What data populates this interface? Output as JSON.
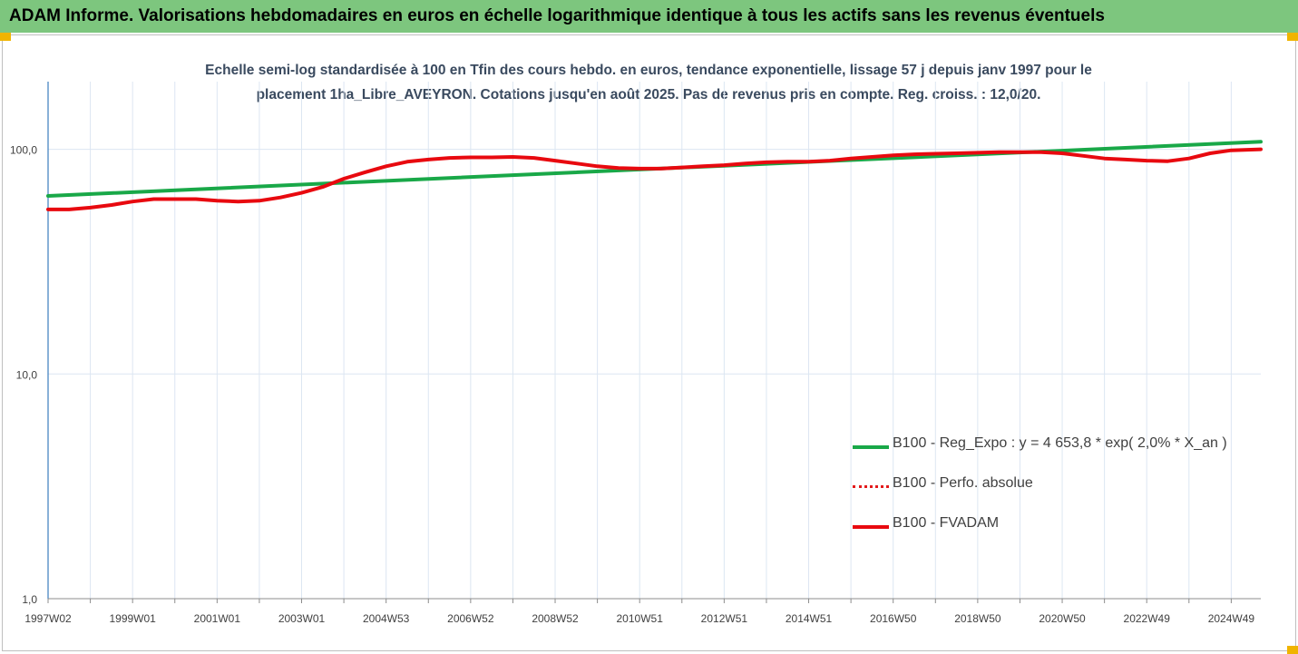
{
  "header": {
    "title": "ADAM Informe. Valorisations hebdomadaires en euros en échelle logarithmique identique à tous les actifs sans les revenus éventuels"
  },
  "colors": {
    "banner": "#7dc67e",
    "accent_corners": "#f0b400",
    "trend": "#19a848",
    "perf": "#e31a1c",
    "fvadam": "#e8090f",
    "grid": "#dce6f2"
  },
  "chart_data": {
    "type": "line",
    "title_line1": "Echelle semi-log standardisée à 100 en Tfin des cours hebdo. en euros, tendance exponentielle, lissage 57 j depuis janv 1997 pour le",
    "title_line2": "placement 1ha_Libre_AVEYRON. Cotations jusqu'en août 2025. Pas de revenus pris en compte. Reg. croiss. : 12,0/20.",
    "yscale": "log",
    "ylim": [
      1,
      200
    ],
    "xlim": [
      1997.0,
      2025.7
    ],
    "grid": true,
    "legend_position": "bottom-right",
    "y_ticks": [
      {
        "value": 1,
        "label": "1,0"
      },
      {
        "value": 10,
        "label": "10,0"
      },
      {
        "value": 100,
        "label": "100,0"
      }
    ],
    "x_ticks": [
      {
        "value": 1997.0,
        "label": "1997W02"
      },
      {
        "value": 1999.0,
        "label": "1999W01"
      },
      {
        "value": 2001.0,
        "label": "2001W01"
      },
      {
        "value": 2003.0,
        "label": "2003W01"
      },
      {
        "value": 2005.0,
        "label": "2004W53"
      },
      {
        "value": 2007.0,
        "label": "2006W52"
      },
      {
        "value": 2009.0,
        "label": "2008W52"
      },
      {
        "value": 2011.0,
        "label": "2010W51"
      },
      {
        "value": 2013.0,
        "label": "2012W51"
      },
      {
        "value": 2015.0,
        "label": "2014W51"
      },
      {
        "value": 2017.0,
        "label": "2016W50"
      },
      {
        "value": 2019.0,
        "label": "2018W50"
      },
      {
        "value": 2021.0,
        "label": "2020W50"
      },
      {
        "value": 2023.0,
        "label": "2022W49"
      },
      {
        "value": 2025.0,
        "label": "2024W49"
      }
    ],
    "series": [
      {
        "name": "B100 - Reg_Expo : y = 4 653,8 * exp( 2,0% *  X_an )",
        "style": "solid",
        "x": [
          1997.0,
          2025.7
        ],
        "y": [
          62,
          108
        ]
      },
      {
        "name": "B100 - Perfo. absolue",
        "style": "dotted",
        "x": [
          1997.0,
          1997.5,
          1998.0,
          1998.5,
          1999.0,
          1999.5,
          2000.0,
          2000.5,
          2001.0,
          2001.5,
          2002.0,
          2002.5,
          2003.0,
          2003.5,
          2004.0,
          2004.5,
          2005.0,
          2005.5,
          2006.0,
          2006.5,
          2007.0,
          2007.5,
          2008.0,
          2008.5,
          2009.0,
          2009.5,
          2010.0,
          2010.5,
          2011.0,
          2011.5,
          2012.0,
          2012.5,
          2013.0,
          2013.5,
          2014.0,
          2014.5,
          2015.0,
          2015.5,
          2016.0,
          2016.5,
          2017.0,
          2017.5,
          2018.0,
          2018.5,
          2019.0,
          2019.5,
          2020.0,
          2020.5,
          2021.0,
          2021.5,
          2022.0,
          2022.5,
          2023.0,
          2023.5,
          2024.0,
          2024.5,
          2025.0,
          2025.7
        ],
        "y": [
          54,
          54,
          55,
          56.5,
          58.5,
          60,
          60,
          60,
          59,
          58.5,
          59,
          61,
          64,
          68,
          74,
          79,
          84,
          88,
          90,
          91.5,
          92,
          92,
          92.5,
          91.5,
          89,
          86.5,
          84,
          82.5,
          82,
          82,
          83,
          84,
          85,
          86.5,
          87.5,
          88,
          88,
          89,
          91,
          92.5,
          94,
          95,
          95.5,
          96,
          96.5,
          97,
          97,
          97,
          96,
          93.5,
          91,
          90,
          89,
          88.5,
          91,
          96,
          99,
          100
        ]
      },
      {
        "name": "B100 - FVADAM",
        "style": "solid-thick",
        "x": [
          1997.0,
          1997.5,
          1998.0,
          1998.5,
          1999.0,
          1999.5,
          2000.0,
          2000.5,
          2001.0,
          2001.5,
          2002.0,
          2002.5,
          2003.0,
          2003.5,
          2004.0,
          2004.5,
          2005.0,
          2005.5,
          2006.0,
          2006.5,
          2007.0,
          2007.5,
          2008.0,
          2008.5,
          2009.0,
          2009.5,
          2010.0,
          2010.5,
          2011.0,
          2011.5,
          2012.0,
          2012.5,
          2013.0,
          2013.5,
          2014.0,
          2014.5,
          2015.0,
          2015.5,
          2016.0,
          2016.5,
          2017.0,
          2017.5,
          2018.0,
          2018.5,
          2019.0,
          2019.5,
          2020.0,
          2020.5,
          2021.0,
          2021.5,
          2022.0,
          2022.5,
          2023.0,
          2023.5,
          2024.0,
          2024.5,
          2025.0,
          2025.7
        ],
        "y": [
          54,
          54,
          55,
          56.5,
          58.5,
          60,
          60,
          60,
          59,
          58.5,
          59,
          61,
          64,
          68,
          74,
          79,
          84,
          88,
          90,
          91.5,
          92,
          92,
          92.5,
          91.5,
          89,
          86.5,
          84,
          82.5,
          82,
          82,
          83,
          84,
          85,
          86.5,
          87.5,
          88,
          88,
          89,
          91,
          92.5,
          94,
          95,
          95.5,
          96,
          96.5,
          97,
          97,
          97,
          96,
          93.5,
          91,
          90,
          89,
          88.5,
          91,
          96,
          99,
          100
        ]
      }
    ]
  }
}
